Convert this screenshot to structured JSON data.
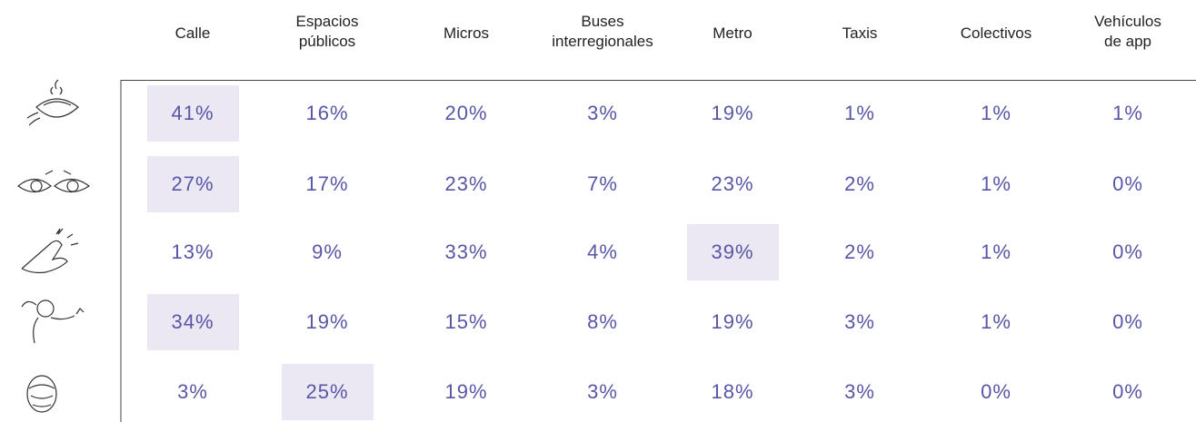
{
  "table": {
    "headers": [
      [
        "Calle"
      ],
      [
        "Espacios",
        "públicos"
      ],
      [
        "Micros"
      ],
      [
        "Buses",
        "interregionales"
      ],
      [
        "Metro"
      ],
      [
        "Taxis"
      ],
      [
        "Colectivos"
      ],
      [
        "Vehículos",
        "de app"
      ]
    ],
    "rows": [
      [
        "41%",
        "16%",
        "20%",
        "3%",
        "19%",
        "1%",
        "1%",
        "1%"
      ],
      [
        "27%",
        "17%",
        "23%",
        "7%",
        "23%",
        "2%",
        "1%",
        "0%"
      ],
      [
        "13%",
        "9%",
        "33%",
        "4%",
        "39%",
        "2%",
        "1%",
        "0%"
      ],
      [
        "34%",
        "19%",
        "15%",
        "8%",
        "19%",
        "3%",
        "1%",
        "0%"
      ],
      [
        "3%",
        "25%",
        "19%",
        "3%",
        "18%",
        "3%",
        "0%",
        "0%"
      ]
    ],
    "highlight": [
      0,
      0,
      4,
      0,
      1
    ]
  }
}
